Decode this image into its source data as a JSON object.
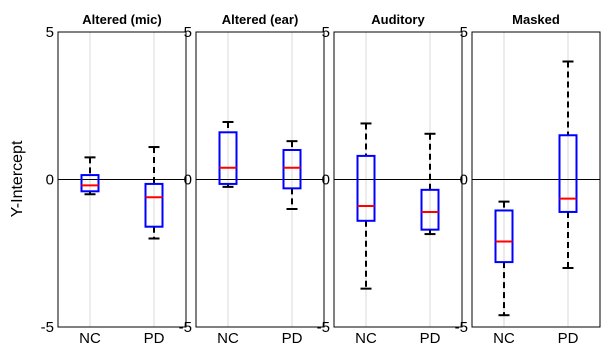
{
  "chart_data": {
    "type": "boxplot",
    "ylabel": "Y-Intercept",
    "ylim": [
      -5,
      5
    ],
    "yticks": [
      "5",
      "0",
      "-5"
    ],
    "ytick_values": [
      5,
      0,
      -5
    ],
    "categories": [
      "NC",
      "PD"
    ],
    "grid": "vertical",
    "zero_line": true,
    "colors": {
      "box": "#0000ff",
      "median": "#ff0000",
      "whisker": "#000000",
      "grid": "#d9d9d9"
    },
    "panels": [
      {
        "title": "Altered (mic)",
        "boxes": [
          {
            "category": "NC",
            "min": -0.5,
            "q1": -0.4,
            "median": -0.2,
            "q3": 0.15,
            "max": 0.75
          },
          {
            "category": "PD",
            "min": -2.0,
            "q1": -1.6,
            "median": -0.6,
            "q3": -0.15,
            "max": 1.1
          }
        ]
      },
      {
        "title": "Altered (ear)",
        "boxes": [
          {
            "category": "NC",
            "min": -0.25,
            "q1": -0.15,
            "median": 0.4,
            "q3": 1.6,
            "max": 1.95
          },
          {
            "category": "PD",
            "min": -1.0,
            "q1": -0.3,
            "median": 0.4,
            "q3": 1.0,
            "max": 1.3
          }
        ]
      },
      {
        "title": "Auditory",
        "boxes": [
          {
            "category": "NC",
            "min": -3.7,
            "q1": -1.4,
            "median": -0.9,
            "q3": 0.8,
            "max": 1.9
          },
          {
            "category": "PD",
            "min": -1.85,
            "q1": -1.7,
            "median": -1.1,
            "q3": -0.35,
            "max": 1.55
          }
        ]
      },
      {
        "title": "Masked",
        "boxes": [
          {
            "category": "NC",
            "min": -4.6,
            "q1": -2.8,
            "median": -2.1,
            "q3": -1.05,
            "max": -0.75
          },
          {
            "category": "PD",
            "min": -3.0,
            "q1": -1.1,
            "median": -0.65,
            "q3": 1.5,
            "max": 4.0
          }
        ]
      }
    ]
  }
}
